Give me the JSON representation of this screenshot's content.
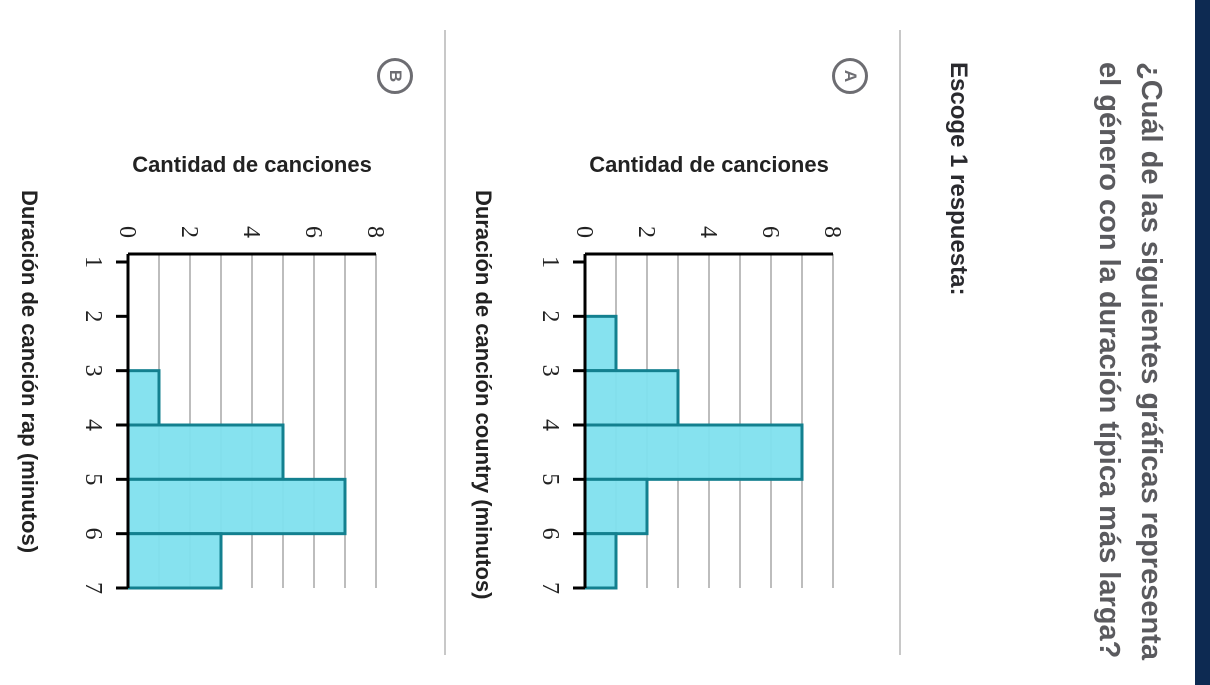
{
  "question": "¿Cuál de las siguientes gráficas representa el género con la duración típica más larga?",
  "instruction": "Escoge 1 respuesta:",
  "colors": {
    "bar_fill": "#80e0ee",
    "bar_stroke": "#13808f",
    "header": "#0d2a52"
  },
  "options": [
    {
      "letter": "A",
      "ylabel": "Cantidad de canciones",
      "xlabel": "Duración de canción country (minutos)"
    },
    {
      "letter": "B",
      "ylabel": "Cantidad de canciones",
      "xlabel": "Duración de canción rap (minutos)"
    }
  ],
  "chart_data": [
    {
      "type": "bar",
      "title": "",
      "xlabel": "Duración de canción country (minutos)",
      "ylabel": "Cantidad de canciones",
      "bin_edges": [
        1,
        2,
        3,
        4,
        5,
        6,
        7
      ],
      "values": [
        0,
        1,
        3,
        7,
        2,
        1
      ],
      "x_ticks": [
        "1",
        "2",
        "3",
        "4",
        "5",
        "6",
        "7"
      ],
      "y_ticks": [
        "0",
        "2",
        "4",
        "6",
        "8"
      ],
      "ylim": [
        0,
        8
      ],
      "grid": true
    },
    {
      "type": "bar",
      "title": "",
      "xlabel": "Duración de canción rap (minutos)",
      "ylabel": "Cantidad de canciones",
      "bin_edges": [
        1,
        2,
        3,
        4,
        5,
        6,
        7
      ],
      "values": [
        0,
        0,
        1,
        5,
        7,
        3
      ],
      "x_ticks": [
        "1",
        "2",
        "3",
        "4",
        "5",
        "6",
        "7"
      ],
      "y_ticks": [
        "0",
        "2",
        "4",
        "6",
        "8"
      ],
      "ylim": [
        0,
        8
      ],
      "grid": true
    }
  ]
}
